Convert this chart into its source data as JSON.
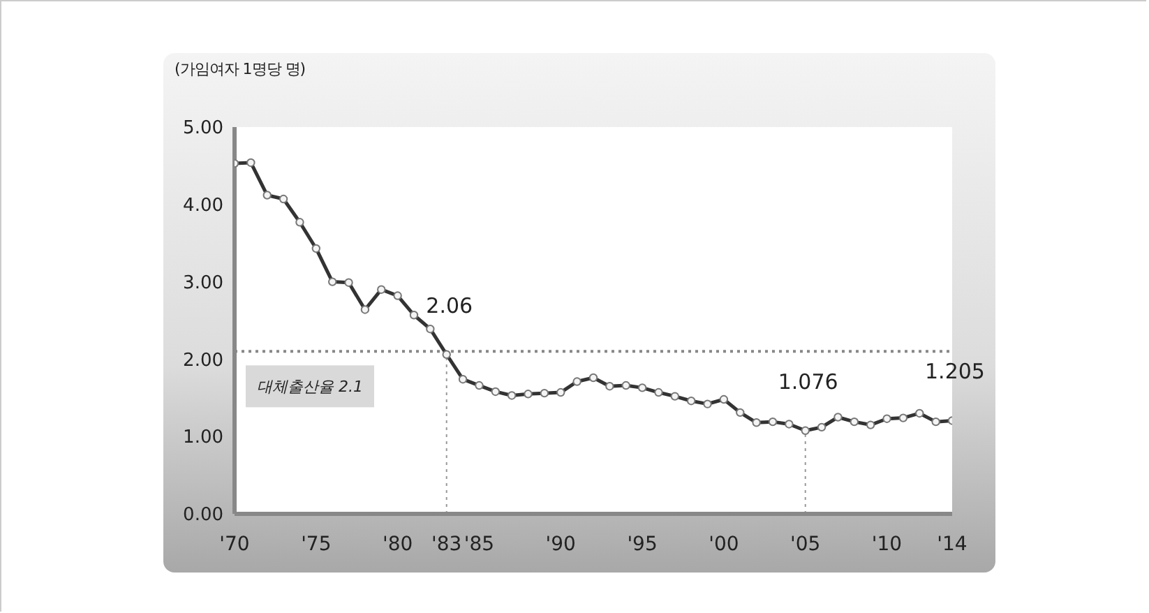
{
  "chart_data": {
    "type": "line",
    "ylabel": "(가임여자 1명당 명)",
    "x": [
      1970,
      1971,
      1972,
      1973,
      1974,
      1975,
      1976,
      1977,
      1978,
      1979,
      1980,
      1981,
      1982,
      1983,
      1984,
      1985,
      1986,
      1987,
      1988,
      1989,
      1990,
      1991,
      1992,
      1993,
      1994,
      1995,
      1996,
      1997,
      1998,
      1999,
      2000,
      2001,
      2002,
      2003,
      2004,
      2005,
      2006,
      2007,
      2008,
      2009,
      2010,
      2011,
      2012,
      2013,
      2014
    ],
    "series": [
      {
        "color": "#333333",
        "values": [
          4.53,
          4.54,
          4.12,
          4.07,
          3.77,
          3.43,
          3.0,
          2.99,
          2.64,
          2.9,
          2.82,
          2.57,
          2.39,
          2.06,
          1.74,
          1.66,
          1.58,
          1.53,
          1.55,
          1.56,
          1.57,
          1.71,
          1.76,
          1.65,
          1.66,
          1.63,
          1.57,
          1.52,
          1.46,
          1.42,
          1.48,
          1.31,
          1.18,
          1.19,
          1.16,
          1.076,
          1.12,
          1.25,
          1.19,
          1.15,
          1.23,
          1.24,
          1.3,
          1.19,
          1.205
        ]
      }
    ],
    "xlim": [
      1970,
      2014
    ],
    "xticks": [
      {
        "value": 1970,
        "label": "'70"
      },
      {
        "value": 1975,
        "label": "'75"
      },
      {
        "value": 1980,
        "label": "'80"
      },
      {
        "value": 1983,
        "label": "'83"
      },
      {
        "value": 1985,
        "label": "'85"
      },
      {
        "value": 1990,
        "label": "'90"
      },
      {
        "value": 1995,
        "label": "'95"
      },
      {
        "value": 2000,
        "label": "'00"
      },
      {
        "value": 2005,
        "label": "'05"
      },
      {
        "value": 2010,
        "label": "'10"
      },
      {
        "value": 2014,
        "label": "'14"
      }
    ],
    "ylim": [
      0,
      5
    ],
    "yticks": [
      {
        "value": 0,
        "label": "0.00"
      },
      {
        "value": 1,
        "label": "1.00"
      },
      {
        "value": 2,
        "label": "2.00"
      },
      {
        "value": 3,
        "label": "3.00"
      },
      {
        "value": 4,
        "label": "4.00"
      },
      {
        "value": 5,
        "label": "5.00"
      }
    ],
    "marker": "circle",
    "line_style": "solid",
    "ref_lines": [
      {
        "axis": "y",
        "value": 2.1,
        "label": "대체출산율 2.1",
        "color": "#888888",
        "line_style": "dotted"
      },
      {
        "axis": "x",
        "value": 1983,
        "color": "#999999",
        "line_style": "dotted"
      },
      {
        "axis": "x",
        "value": 2005,
        "color": "#999999",
        "line_style": "dotted"
      }
    ],
    "annotations": [
      {
        "text": "2.06",
        "x": 1983,
        "y": 2.06
      },
      {
        "text": "1.076",
        "x": 2005,
        "y": 1.076
      },
      {
        "text": "1.205",
        "x": 2014,
        "y": 1.205
      }
    ]
  }
}
